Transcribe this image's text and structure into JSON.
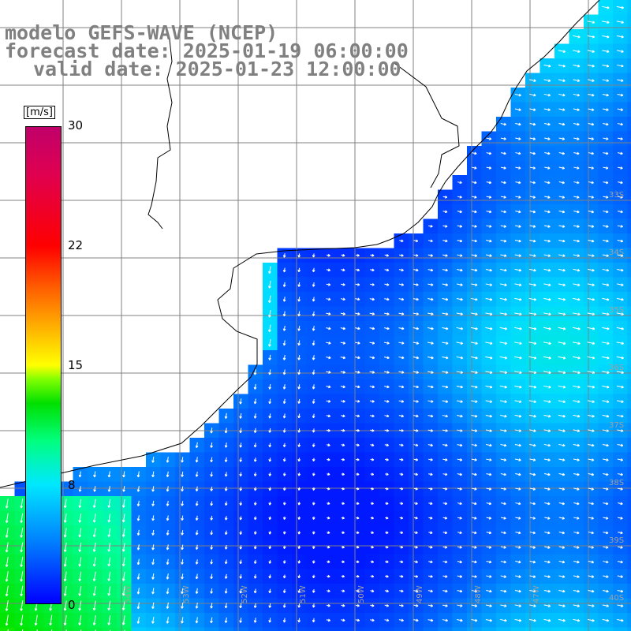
{
  "title": {
    "line1": "modelo GEFS-WAVE (NCEP)",
    "line2": "forecast date: 2025-01-19 06:00:00",
    "line3": "valid date: 2025-01-23 12:00:00"
  },
  "colorbar": {
    "unit": "[m/s]",
    "ticks": [
      "30",
      "22",
      "15",
      "8",
      "0"
    ]
  },
  "lat_labels": [
    "33S",
    "34S",
    "35S",
    "36S",
    "37S",
    "38S",
    "39S",
    "40S"
  ],
  "lon_labels": [
    "54W",
    "53W",
    "52W",
    "51W",
    "50W",
    "49W",
    "48W",
    "47W"
  ],
  "colors": {
    "low": "#0000ff",
    "mid": "#00c8ff",
    "high": "#00ff40",
    "land": "#ffffff",
    "grid": "#808080",
    "title": "#808080",
    "arrows": "#ffffff"
  }
}
